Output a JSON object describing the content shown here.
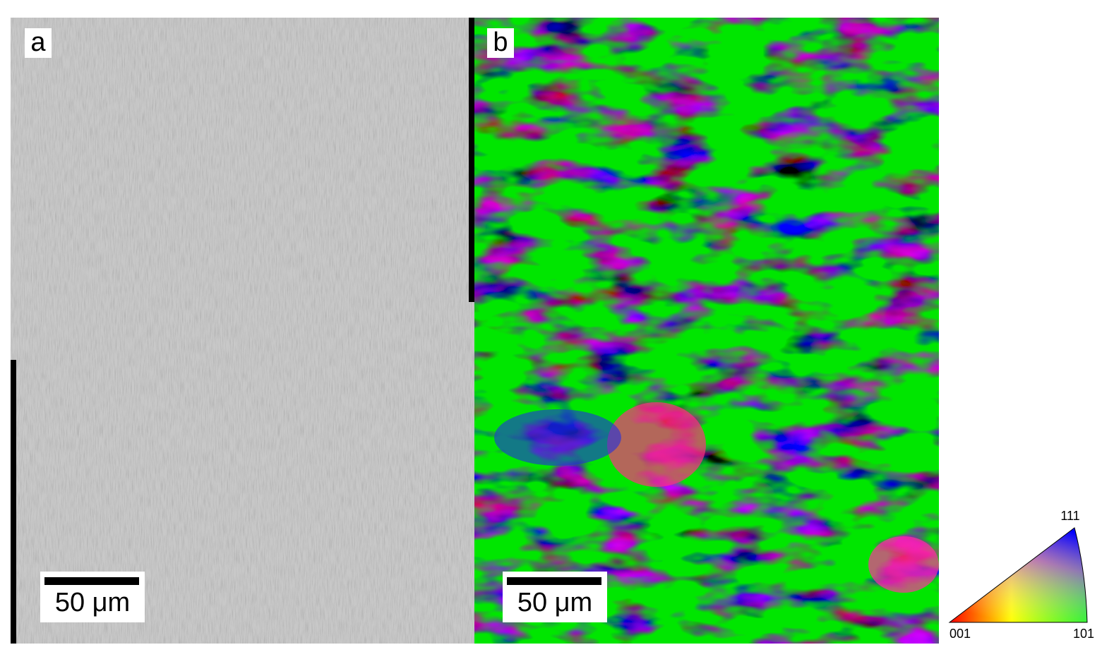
{
  "panels": [
    {
      "label": "a",
      "scale_bar": "50 μm"
    },
    {
      "label": "b",
      "scale_bar": "50 μm"
    }
  ],
  "legend": {
    "top": "111",
    "left": "001",
    "right": "101"
  }
}
